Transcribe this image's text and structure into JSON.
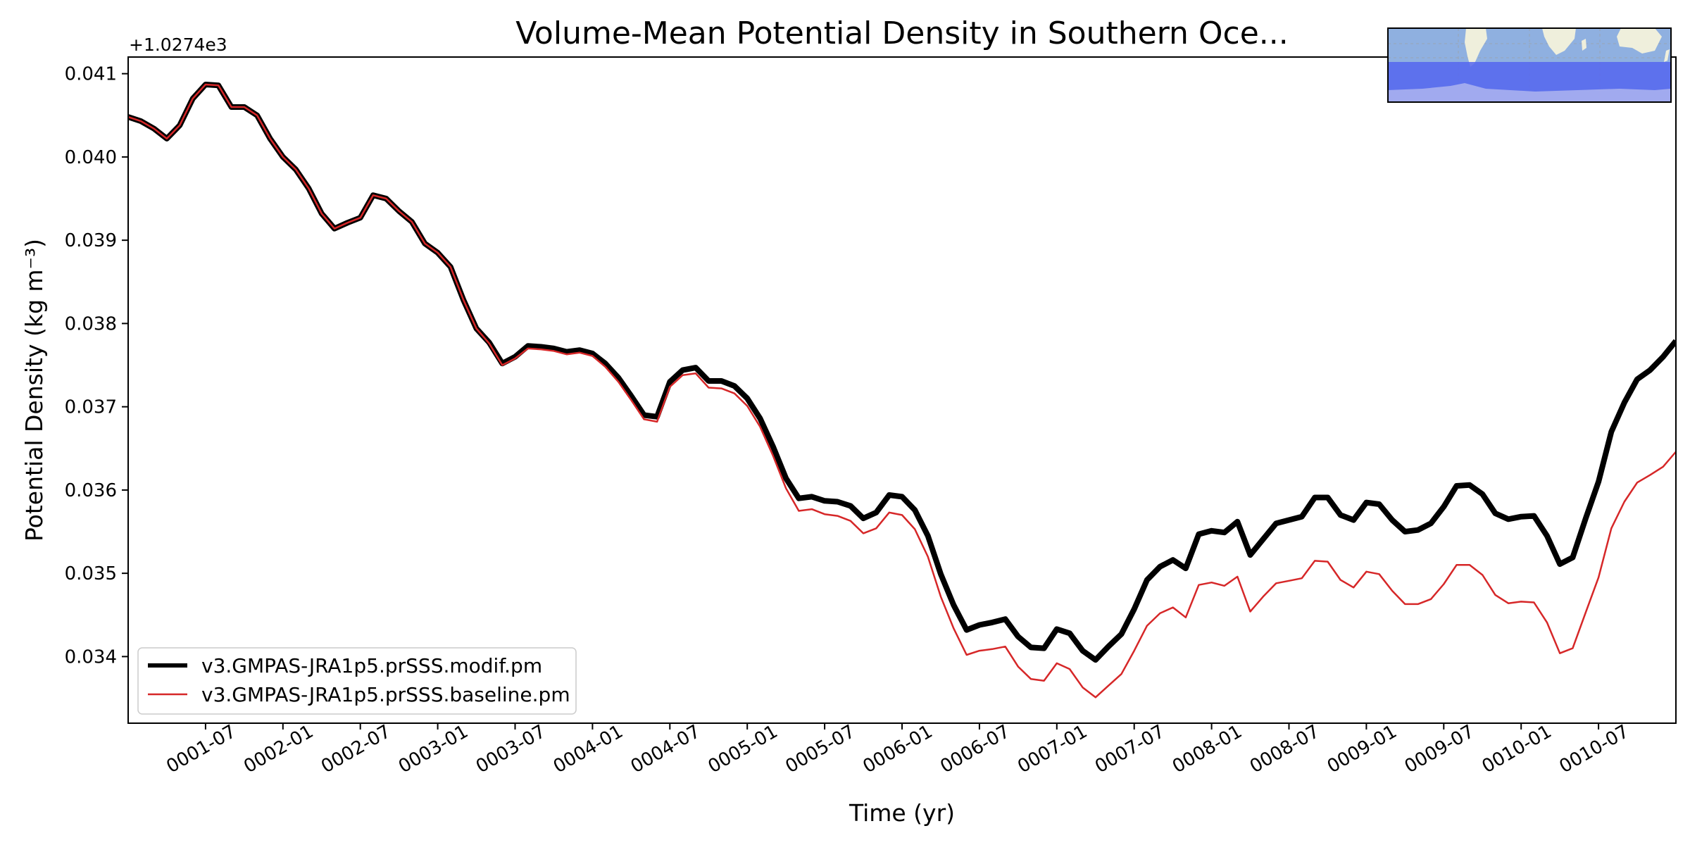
{
  "chart_data": {
    "type": "line",
    "title": "Volume-Mean Potential Density in Southern Oce...",
    "xlabel": "Time (yr)",
    "ylabel": "Potential Density (kg m⁻³)",
    "offset_label": "+1.0274e3",
    "xlim": [
      1.0,
      11.0
    ],
    "ylim": [
      0.0332,
      0.0412
    ],
    "yticks": [
      0.034,
      0.035,
      0.036,
      0.037,
      0.038,
      0.039,
      0.04,
      0.041
    ],
    "ytick_labels": [
      "0.034",
      "0.035",
      "0.036",
      "0.037",
      "0.038",
      "0.039",
      "0.040",
      "0.041"
    ],
    "xticks": [
      1.5,
      2.0,
      2.5,
      3.0,
      3.5,
      4.0,
      4.5,
      5.0,
      5.5,
      6.0,
      6.5,
      7.0,
      7.5,
      8.0,
      8.5,
      9.0,
      9.5,
      10.0,
      10.5
    ],
    "xtick_labels": [
      "0001-07",
      "0002-01",
      "0002-07",
      "0003-01",
      "0003-07",
      "0004-01",
      "0004-07",
      "0005-01",
      "0005-07",
      "0006-01",
      "0006-07",
      "0007-01",
      "0007-07",
      "0008-01",
      "0008-07",
      "0009-01",
      "0009-07",
      "0010-01",
      "0010-07"
    ],
    "legend_position": "bottom-left",
    "series": [
      {
        "name": "v3.GMPAS-JRA1p5.prSSS.modif.pm",
        "color": "#000000",
        "x": [
          1.0,
          1.083,
          1.167,
          1.25,
          1.333,
          1.417,
          1.5,
          1.583,
          1.667,
          1.75,
          1.833,
          1.917,
          2.0,
          2.083,
          2.167,
          2.25,
          2.333,
          2.417,
          2.5,
          2.583,
          2.667,
          2.75,
          2.833,
          2.917,
          3.0,
          3.083,
          3.167,
          3.25,
          3.333,
          3.417,
          3.5,
          3.583,
          3.667,
          3.75,
          3.833,
          3.917,
          4.0,
          4.083,
          4.167,
          4.25,
          4.333,
          4.417,
          4.5,
          4.583,
          4.667,
          4.75,
          4.833,
          4.917,
          5.0,
          5.083,
          5.167,
          5.25,
          5.333,
          5.417,
          5.5,
          5.583,
          5.667,
          5.75,
          5.833,
          5.917,
          6.0,
          6.083,
          6.167,
          6.25,
          6.333,
          6.417,
          6.5,
          6.583,
          6.667,
          6.75,
          6.833,
          6.917,
          7.0,
          7.083,
          7.167,
          7.25,
          7.333,
          7.417,
          7.5,
          7.583,
          7.667,
          7.75,
          7.833,
          7.917,
          8.0,
          8.083,
          8.167,
          8.25,
          8.333,
          8.417,
          8.5,
          8.583,
          8.667,
          8.75,
          8.833,
          8.917,
          9.0,
          9.083,
          9.167,
          9.25,
          9.333,
          9.417,
          9.5,
          9.583,
          9.667,
          9.75,
          9.833,
          9.917,
          10.0,
          10.083,
          10.167,
          10.25,
          10.333,
          10.417,
          10.5,
          10.583,
          10.667,
          10.75,
          10.833,
          10.917,
          11.0
        ],
        "values": [
          0.04048,
          0.04043,
          0.04034,
          0.04022,
          0.04038,
          0.0407,
          0.04087,
          0.04086,
          0.0406,
          0.0406,
          0.0405,
          0.04022,
          0.04,
          0.03985,
          0.03962,
          0.03932,
          0.03914,
          0.03921,
          0.03927,
          0.03954,
          0.0395,
          0.03935,
          0.03922,
          0.03896,
          0.03885,
          0.03868,
          0.03828,
          0.03794,
          0.03777,
          0.03752,
          0.0376,
          0.03773,
          0.03772,
          0.0377,
          0.03766,
          0.03768,
          0.03764,
          0.03752,
          0.03735,
          0.03713,
          0.0369,
          0.03688,
          0.0373,
          0.03744,
          0.03747,
          0.03731,
          0.03731,
          0.03725,
          0.0371,
          0.03686,
          0.03652,
          0.03614,
          0.0359,
          0.03592,
          0.03587,
          0.03586,
          0.03581,
          0.03566,
          0.03573,
          0.03594,
          0.03592,
          0.03576,
          0.03545,
          0.03499,
          0.03462,
          0.03432,
          0.03438,
          0.03441,
          0.03445,
          0.03424,
          0.03411,
          0.0341,
          0.03433,
          0.03428,
          0.03407,
          0.03396,
          0.03412,
          0.03427,
          0.03457,
          0.03492,
          0.03508,
          0.03516,
          0.03506,
          0.03547,
          0.03551,
          0.03549,
          0.03562,
          0.03522,
          0.03541,
          0.0356,
          0.03564,
          0.03568,
          0.03591,
          0.03591,
          0.0357,
          0.03564,
          0.03585,
          0.03583,
          0.03564,
          0.0355,
          0.03552,
          0.0356,
          0.0358,
          0.03605,
          0.03606,
          0.03595,
          0.03572,
          0.03565,
          0.03568,
          0.03569,
          0.03545,
          0.03511,
          0.03519,
          0.03566,
          0.0361,
          0.0367,
          0.03705,
          0.03733,
          0.03744,
          0.0376,
          0.03779
        ]
      },
      {
        "name": "v3.GMPAS-JRA1p5.prSSS.baseline.pm",
        "color": "#d62728",
        "x": [
          1.0,
          1.083,
          1.167,
          1.25,
          1.333,
          1.417,
          1.5,
          1.583,
          1.667,
          1.75,
          1.833,
          1.917,
          2.0,
          2.083,
          2.167,
          2.25,
          2.333,
          2.417,
          2.5,
          2.583,
          2.667,
          2.75,
          2.833,
          2.917,
          3.0,
          3.083,
          3.167,
          3.25,
          3.333,
          3.417,
          3.5,
          3.583,
          3.667,
          3.75,
          3.833,
          3.917,
          4.0,
          4.083,
          4.167,
          4.25,
          4.333,
          4.417,
          4.5,
          4.583,
          4.667,
          4.75,
          4.833,
          4.917,
          5.0,
          5.083,
          5.167,
          5.25,
          5.333,
          5.417,
          5.5,
          5.583,
          5.667,
          5.75,
          5.833,
          5.917,
          6.0,
          6.083,
          6.167,
          6.25,
          6.333,
          6.417,
          6.5,
          6.583,
          6.667,
          6.75,
          6.833,
          6.917,
          7.0,
          7.083,
          7.167,
          7.25,
          7.333,
          7.417,
          7.5,
          7.583,
          7.667,
          7.75,
          7.833,
          7.917,
          8.0,
          8.083,
          8.167,
          8.25,
          8.333,
          8.417,
          8.5,
          8.583,
          8.667,
          8.75,
          8.833,
          8.917,
          9.0,
          9.083,
          9.167,
          9.25,
          9.333,
          9.417,
          9.5,
          9.583,
          9.667,
          9.75,
          9.833,
          9.917,
          10.0,
          10.083,
          10.167,
          10.25,
          10.333,
          10.417,
          10.5,
          10.583,
          10.667,
          10.75,
          10.833,
          10.917,
          11.0
        ],
        "values": [
          0.04048,
          0.04043,
          0.04034,
          0.04022,
          0.04038,
          0.0407,
          0.04087,
          0.04086,
          0.0406,
          0.0406,
          0.0405,
          0.04022,
          0.04,
          0.03985,
          0.03962,
          0.03932,
          0.03914,
          0.03921,
          0.03927,
          0.03954,
          0.0395,
          0.03935,
          0.03922,
          0.03896,
          0.03885,
          0.03868,
          0.03828,
          0.03794,
          0.03776,
          0.0375,
          0.03758,
          0.0377,
          0.03769,
          0.03767,
          0.03763,
          0.03765,
          0.03761,
          0.03748,
          0.0373,
          0.03708,
          0.03685,
          0.03682,
          0.03724,
          0.03738,
          0.0374,
          0.03723,
          0.03722,
          0.03716,
          0.03701,
          0.03676,
          0.03641,
          0.03602,
          0.03575,
          0.03577,
          0.03571,
          0.03569,
          0.03563,
          0.03548,
          0.03554,
          0.03573,
          0.0357,
          0.03553,
          0.0352,
          0.03472,
          0.03434,
          0.03402,
          0.03407,
          0.03409,
          0.03412,
          0.03388,
          0.03373,
          0.03371,
          0.03392,
          0.03385,
          0.03363,
          0.03351,
          0.03365,
          0.03379,
          0.03407,
          0.03437,
          0.03452,
          0.03459,
          0.03447,
          0.03486,
          0.03489,
          0.03485,
          0.03496,
          0.03454,
          0.03472,
          0.03488,
          0.03491,
          0.03494,
          0.03515,
          0.03514,
          0.03492,
          0.03483,
          0.03502,
          0.03499,
          0.03479,
          0.03463,
          0.03463,
          0.03469,
          0.03487,
          0.0351,
          0.0351,
          0.03498,
          0.03474,
          0.03464,
          0.03466,
          0.03465,
          0.03441,
          0.03404,
          0.0341,
          0.03453,
          0.03495,
          0.03554,
          0.03586,
          0.03609,
          0.03618,
          0.03628,
          0.03646
        ]
      }
    ]
  },
  "inset_map": {
    "description_name": "southern-ocean-region-map",
    "ocean_color": "#8fb0e0",
    "region_color": "#5566ee",
    "land_color": "#efefdc"
  }
}
